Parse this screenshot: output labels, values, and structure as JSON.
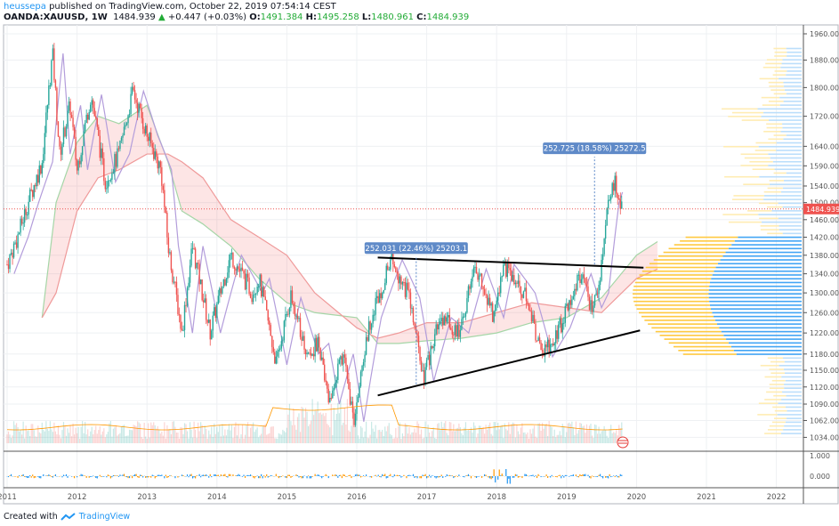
{
  "header": {
    "author": "heussepa",
    "published": "published on TradingView.com, October 22, 2019 07:54:14 CEST",
    "symbol": "OANDA:XAUUSD, 1W",
    "last": "1484.939",
    "change": "+0.447 (+0.03%)",
    "o_label": "O:",
    "o": "1491.384",
    "h_label": "H:",
    "h": "1495.258",
    "l_label": "L:",
    "l": "1480.961",
    "c_label": "C:",
    "c": "1484.939"
  },
  "footer": {
    "created_with": "Created with",
    "brand": "TradingView"
  },
  "colors": {
    "up": "#26a69a",
    "down": "#ef5350",
    "accent": "#2196f3",
    "price_label": "#ef5350"
  },
  "chart_data": {
    "type": "candlestick",
    "title": "OANDA:XAUUSD, 1W",
    "price_axis": {
      "scale": "log",
      "ticks": [
        "1960.000",
        "1880.000",
        "1800.000",
        "1720.000",
        "1640.000",
        "1590.000",
        "1540.000",
        "1500.000",
        "1460.000",
        "1420.000",
        "1380.000",
        "1340.000",
        "1300.000",
        "1260.000",
        "1220.000",
        "1180.000",
        "1150.000",
        "1120.000",
        "1090.000",
        "1062.000",
        "1034.000"
      ],
      "current": "1484.939"
    },
    "time_axis": {
      "ticks": [
        "2011",
        "2012",
        "2013",
        "2014",
        "2015",
        "2016",
        "2017",
        "2018",
        "2019",
        "2020",
        "2021",
        "2022"
      ]
    },
    "oscillator_axis": {
      "ticks": [
        "1.000",
        "0.000"
      ]
    },
    "price_path": [
      [
        2011.0,
        1360
      ],
      [
        2011.15,
        1420
      ],
      [
        2011.3,
        1500
      ],
      [
        2011.5,
        1600
      ],
      [
        2011.65,
        1900
      ],
      [
        2011.75,
        1620
      ],
      [
        2011.9,
        1750
      ],
      [
        2012.0,
        1580
      ],
      [
        2012.2,
        1780
      ],
      [
        2012.4,
        1550
      ],
      [
        2012.6,
        1620
      ],
      [
        2012.8,
        1790
      ],
      [
        2013.0,
        1670
      ],
      [
        2013.2,
        1580
      ],
      [
        2013.3,
        1400
      ],
      [
        2013.5,
        1220
      ],
      [
        2013.65,
        1400
      ],
      [
        2013.9,
        1220
      ],
      [
        2014.2,
        1380
      ],
      [
        2014.5,
        1300
      ],
      [
        2014.6,
        1330
      ],
      [
        2014.85,
        1160
      ],
      [
        2015.05,
        1290
      ],
      [
        2015.3,
        1180
      ],
      [
        2015.45,
        1200
      ],
      [
        2015.6,
        1090
      ],
      [
        2015.8,
        1180
      ],
      [
        2015.95,
        1060
      ],
      [
        2016.2,
        1250
      ],
      [
        2016.5,
        1370
      ],
      [
        2016.75,
        1290
      ],
      [
        2016.95,
        1130
      ],
      [
        2017.2,
        1250
      ],
      [
        2017.45,
        1220
      ],
      [
        2017.7,
        1350
      ],
      [
        2017.95,
        1250
      ],
      [
        2018.1,
        1360
      ],
      [
        2018.4,
        1300
      ],
      [
        2018.6,
        1200
      ],
      [
        2018.65,
        1175
      ],
      [
        2018.9,
        1230
      ],
      [
        2019.2,
        1340
      ],
      [
        2019.35,
        1270
      ],
      [
        2019.45,
        1300
      ],
      [
        2019.6,
        1500
      ],
      [
        2019.7,
        1550
      ],
      [
        2019.8,
        1485
      ]
    ],
    "annotations": [
      {
        "text": "252.031 (22.46%) 25203.1",
        "from": [
          2016.85,
          1125
        ],
        "to": [
          2016.85,
          1377
        ]
      },
      {
        "text": "252.725 (18.58%) 25272.5",
        "from": [
          2019.4,
          1360
        ],
        "to": [
          2019.4,
          1613
        ]
      }
    ],
    "trendlines": [
      [
        [
          2016.3,
          1375
        ],
        [
          2020.1,
          1353
        ]
      ],
      [
        [
          2016.3,
          1105
        ],
        [
          2020.05,
          1225
        ]
      ]
    ]
  }
}
